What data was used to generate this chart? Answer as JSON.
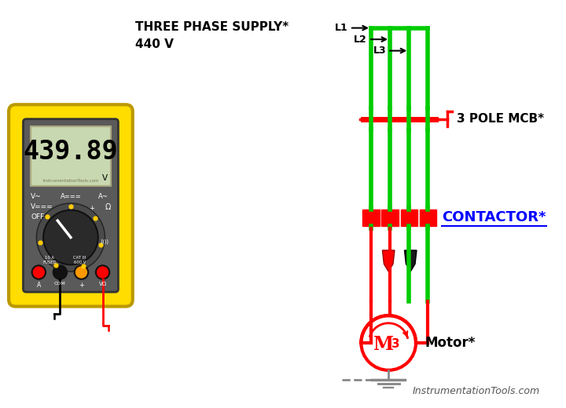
{
  "bg_color": "#ffffff",
  "green": "#00cc00",
  "red": "#ff0000",
  "yellow": "#ffdd00",
  "gray": "#888888",
  "blue": "#0000ff",
  "black": "#000000",
  "supply_label": "THREE PHASE SUPPLY*",
  "voltage_label": "440 V",
  "mcb_label": "3 POLE MCB*",
  "contactor_label": "CONTACTOR*",
  "motor_label": "Motor*",
  "watermark": "InstrumentationTools.com",
  "reading": "439.89",
  "unit": "V",
  "L1": "L1",
  "L2": "L2",
  "L3": "L3"
}
